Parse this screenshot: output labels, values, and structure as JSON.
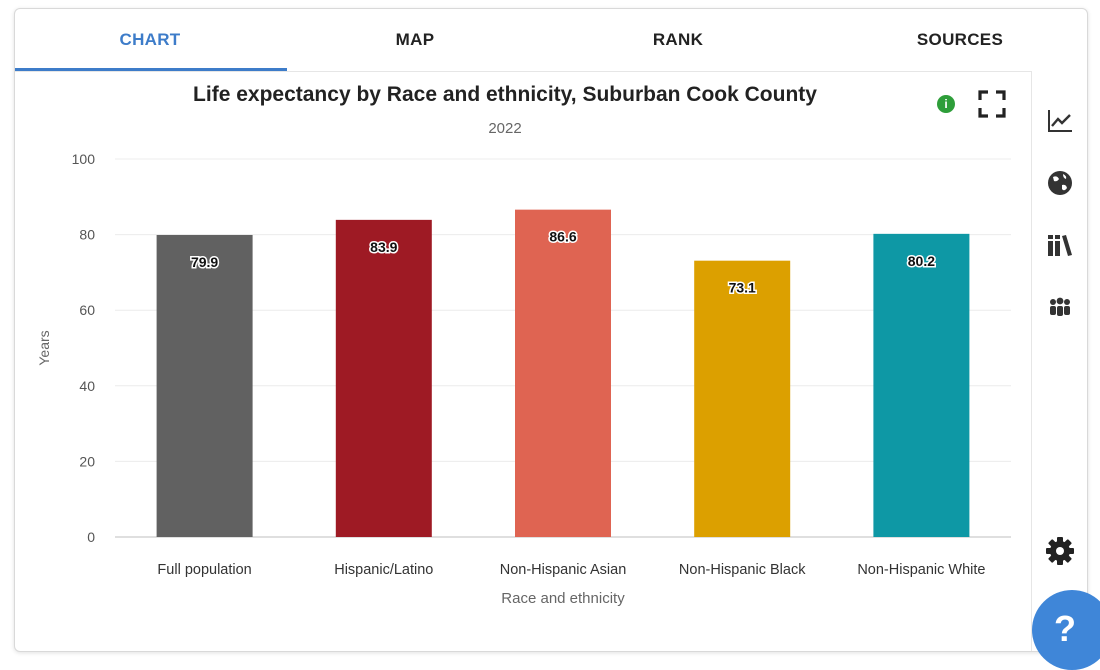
{
  "tabs": [
    {
      "label": "CHART",
      "active": true
    },
    {
      "label": "MAP",
      "active": false
    },
    {
      "label": "RANK",
      "active": false
    },
    {
      "label": "SOURCES",
      "active": false
    }
  ],
  "sidebar": {
    "icons": [
      "line-chart-icon",
      "globe-icon",
      "books-icon",
      "people-icon",
      "gear-icon"
    ]
  },
  "help": {
    "label": "?"
  },
  "info": {
    "label": "i"
  },
  "colors": {
    "accent": "#3d7cc9",
    "info_green": "#2e9e3a",
    "help_blue": "#3f86d8"
  },
  "chart_data": {
    "type": "bar",
    "title": "Life expectancy by Race and ethnicity, Suburban Cook County",
    "subtitle": "2022",
    "xlabel": "Race and ethnicity",
    "ylabel": "Years",
    "ylim": [
      0,
      100
    ],
    "yticks": [
      0,
      20,
      40,
      60,
      80,
      100
    ],
    "grid": true,
    "categories": [
      "Full population",
      "Hispanic/Latino",
      "Non-Hispanic Asian",
      "Non-Hispanic Black",
      "Non-Hispanic White"
    ],
    "values": [
      79.9,
      83.9,
      86.6,
      73.1,
      80.2
    ],
    "labels": [
      "79.9",
      "83.9",
      "86.6",
      "73.1",
      "80.2"
    ],
    "colors": [
      "#616161",
      "#9e1a24",
      "#df6452",
      "#dca000",
      "#0e98a5"
    ]
  }
}
